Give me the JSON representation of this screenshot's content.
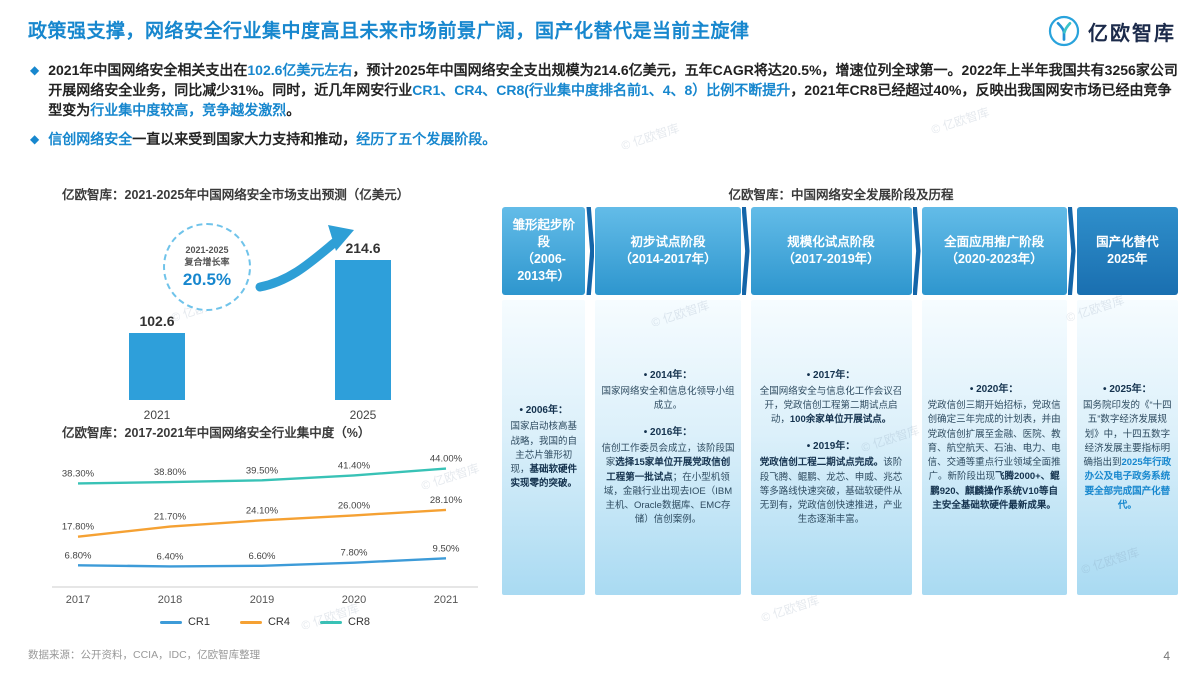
{
  "page": {
    "title": "政策强支撑，网络安全行业集中度高且未来市场前景广阔，国产化替代是当前主旋律",
    "logo_text": "亿欧智库",
    "bullet_icon": "◆",
    "page_number": "4",
    "source": "数据来源：公开资料，CCIA，IDC，亿欧智库整理",
    "watermark": "© 亿欧智库"
  },
  "bullets": {
    "b1": [
      {
        "t": "2021年中国网络安全相关支出在",
        "hl": false
      },
      {
        "t": "102.6亿美元左右",
        "hl": true
      },
      {
        "t": "，预计2025年中国网络安全支出规模为214.6亿美元，五年CAGR将达20.5%，增速位列全球第一。2022年上半年我国共有3256家公司开展网络安全业务，同比减少31%。同时，近几年网安行业",
        "hl": false
      },
      {
        "t": "CR1、CR4、CR8(行业集中度排名前1、4、8）比例不断提升",
        "hl": true
      },
      {
        "t": "，2021年CR8已经超过40%，反映出我国网安市场已经由竞争型变为",
        "hl": false
      },
      {
        "t": "行业集中度较高，竞争越发激烈",
        "hl": true
      },
      {
        "t": "。",
        "hl": false
      }
    ],
    "b2": [
      {
        "t": "信创网络安全",
        "hl": true
      },
      {
        "t": "一直以来受到国家大力支持和推动，",
        "hl": false
      },
      {
        "t": "经历了五个发展阶段。",
        "hl": true
      }
    ]
  },
  "chart_data": [
    {
      "type": "bar",
      "title": "亿欧智库：2021-2025年中国网络安全市场支出预测（亿美元）",
      "categories": [
        "2021",
        "2025"
      ],
      "values": [
        102.6,
        214.6
      ],
      "ylim": [
        0,
        240
      ],
      "bar_color": "#2E9FDA",
      "annotation": {
        "range": "2021-2025",
        "label": "复合增长率",
        "value": "20.5%"
      }
    },
    {
      "type": "line",
      "title": "亿欧智库：2017-2021年中国网络安全行业集中度（%）",
      "categories": [
        "2017",
        "2018",
        "2019",
        "2020",
        "2021"
      ],
      "series": [
        {
          "name": "CR1",
          "color": "#3D9BD8",
          "values": [
            6.8,
            6.4,
            6.6,
            7.8,
            9.5
          ]
        },
        {
          "name": "CR4",
          "color": "#F5A133",
          "values": [
            17.8,
            21.7,
            24.1,
            26.0,
            28.1
          ]
        },
        {
          "name": "CR8",
          "color": "#38C2B6",
          "values": [
            38.3,
            38.8,
            39.5,
            41.4,
            44.0
          ]
        }
      ],
      "ylim": [
        0,
        50
      ],
      "legend_position": "bottom",
      "grid": false
    }
  ],
  "timeline": {
    "title": "亿欧智库：中国网络安全发展阶段及历程",
    "stages": [
      {
        "name": "雏形起步阶段",
        "years": "（2006-2013年）",
        "items": [
          {
            "year": "• 2006年：",
            "segs": [
              {
                "t": "国家启动核高基战略，我国的自主芯片雏形初现，",
                "b": false
              },
              {
                "t": "基础软硬件实现零的突破。",
                "b": true
              }
            ]
          }
        ]
      },
      {
        "name": "初步试点阶段",
        "years": "（2014-2017年）",
        "items": [
          {
            "year": "• 2014年：",
            "segs": [
              {
                "t": "国家网络安全和信息化领导小组成立。",
                "b": false
              }
            ]
          },
          {
            "year": "• 2016年：",
            "segs": [
              {
                "t": "信创工作委员会成立，该阶段国家",
                "b": false
              },
              {
                "t": "选择15家单位开展党政信创工程第一批试点",
                "b": true
              },
              {
                "t": "；在小型机领域，金融行业出现去IOE（IBM主机、Oracle数据库、EMC存储）信创案例。",
                "b": false
              }
            ]
          }
        ]
      },
      {
        "name": "规模化试点阶段",
        "years": "（2017-2019年）",
        "items": [
          {
            "year": "• 2017年：",
            "segs": [
              {
                "t": "全国网络安全与信息化工作会议召开，党政信创工程第二期试点启动，",
                "b": false
              },
              {
                "t": "100余家单位开展试点。",
                "b": true
              }
            ]
          },
          {
            "year": "• 2019年：",
            "segs": [
              {
                "t": "党政信创工程二期试点完成。",
                "b": true
              },
              {
                "t": "该阶段飞腾、鲲鹏、龙芯、申威、兆芯等多路线快速突破，基础软硬件从无到有，党政信创快速推进，产业生态逐渐丰富。",
                "b": false
              }
            ]
          }
        ]
      },
      {
        "name": "全面应用推广阶段",
        "years": "（2020-2023年）",
        "items": [
          {
            "year": "• 2020年：",
            "segs": [
              {
                "t": "党政信创三期开始招标，党政信创确定三年完成的计划表，并由党政信创扩展至金融、医院、教育、航空航天、石油、电力、电信、交通等重点行业领域全面推广。新阶段出现",
                "b": false
              },
              {
                "t": "飞腾2000+、鲲鹏920、麒麟操作系统V10等自主安全基础软硬件最新成果。",
                "b": true
              }
            ]
          }
        ]
      },
      {
        "name": "国产化替代",
        "years": "2025年",
        "items": [
          {
            "year": "• 2025年：",
            "segs": [
              {
                "t": "国务院印发的《“十四五”数字经济发展规划》中，十四五数字经济发展主要指标明确指出到",
                "b": false
              },
              {
                "t": "2025年行政办公及电子政务系统要全部完成国产化替代。",
                "b": true,
                "blue": true
              }
            ]
          }
        ]
      }
    ]
  }
}
